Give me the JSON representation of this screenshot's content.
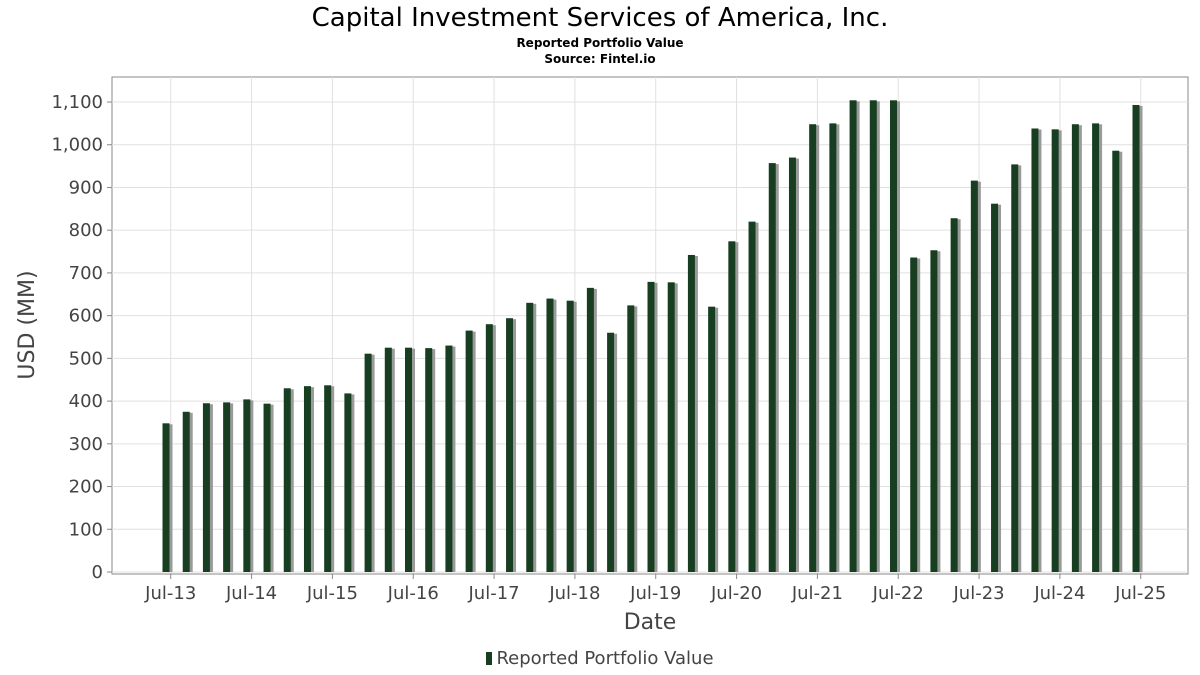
{
  "chart_data": {
    "type": "bar",
    "title": "Capital Investment Services of America, Inc.",
    "subtitle": [
      "Reported Portfolio Value",
      "Source: Fintel.io"
    ],
    "xlabel": "Date",
    "ylabel": "USD (MM)",
    "ylim": [
      0,
      1160
    ],
    "yticks": [
      0,
      100,
      200,
      300,
      400,
      500,
      600,
      700,
      800,
      900,
      1000,
      1100
    ],
    "xtick_labels": [
      "Jul-13",
      "Jul-14",
      "Jul-15",
      "Jul-16",
      "Jul-17",
      "Jul-18",
      "Jul-19",
      "Jul-20",
      "Jul-21",
      "Jul-22",
      "Jul-23",
      "Jul-24",
      "Jul-25"
    ],
    "grid": true,
    "legend_position": "bottom-center",
    "bar_color": "#183e22",
    "series": [
      {
        "name": "Reported Portfolio Value",
        "x": [
          "Jun-13",
          "Sep-13",
          "Dec-13",
          "Mar-14",
          "Jun-14",
          "Sep-14",
          "Dec-14",
          "Mar-15",
          "Jun-15",
          "Sep-15",
          "Dec-15",
          "Mar-16",
          "Jun-16",
          "Sep-16",
          "Dec-16",
          "Mar-17",
          "Jun-17",
          "Sep-17",
          "Dec-17",
          "Mar-18",
          "Jun-18",
          "Sep-18",
          "Dec-18",
          "Mar-19",
          "Jun-19",
          "Sep-19",
          "Dec-19",
          "Mar-20",
          "Jun-20",
          "Sep-20",
          "Dec-20",
          "Mar-21",
          "Jun-21",
          "Sep-21",
          "Dec-21",
          "Mar-22",
          "Jun-22",
          "Sep-22",
          "Dec-22",
          "Mar-23",
          "Jun-23",
          "Sep-23",
          "Dec-23",
          "Mar-24",
          "Jun-24",
          "Sep-24",
          "Dec-24",
          "Mar-25",
          "Jun-25"
        ],
        "values": [
          348,
          375,
          395,
          397,
          404,
          394,
          430,
          435,
          437,
          418,
          511,
          525,
          525,
          524,
          530,
          565,
          580,
          594,
          630,
          640,
          635,
          665,
          560,
          624,
          679,
          678,
          742,
          621,
          774,
          820,
          957,
          970,
          1048,
          1050,
          1104,
          1104,
          1104,
          736,
          753,
          828,
          916,
          862,
          954,
          1038,
          1036,
          1048,
          1050,
          986,
          1093
        ]
      }
    ]
  }
}
